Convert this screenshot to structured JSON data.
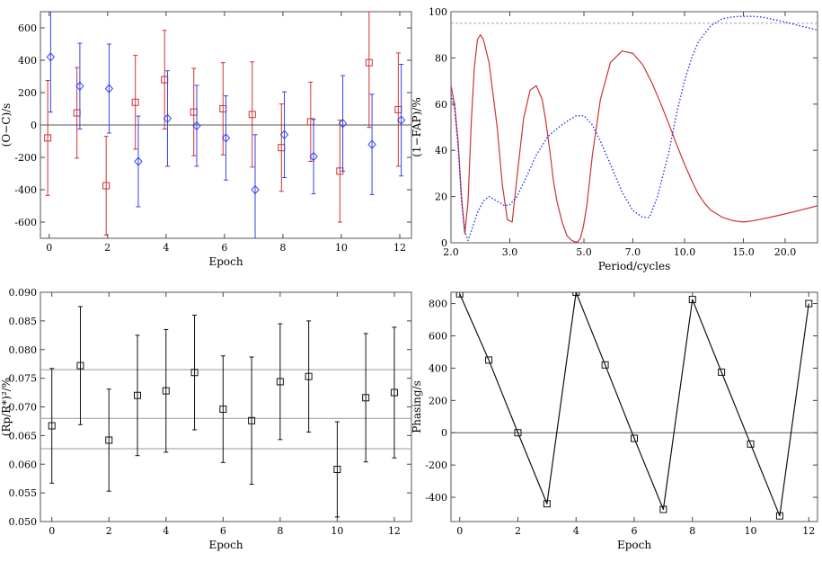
{
  "chart_data": [
    {
      "type": "scatter",
      "panel": "top-left",
      "xlabel": "Epoch",
      "ylabel": "(O−C)/s",
      "xlim": [
        -0.3,
        12.4
      ],
      "ylim": [
        -700,
        700
      ],
      "xticks": [
        0,
        2,
        4,
        6,
        8,
        10,
        12
      ],
      "yticks": [
        -600,
        -400,
        -200,
        0,
        200,
        400,
        600
      ],
      "hline": 0,
      "series": [
        {
          "name": "squares",
          "color": "#cc3333",
          "marker": "square",
          "x": [
            0,
            1,
            2,
            3,
            4,
            5,
            6,
            7,
            8,
            9,
            10,
            11,
            12
          ],
          "y": [
            -80,
            75,
            -375,
            140,
            280,
            80,
            100,
            65,
            -140,
            20,
            -285,
            385,
            95
          ],
          "err": [
            355,
            280,
            305,
            290,
            305,
            270,
            285,
            325,
            270,
            245,
            315,
            400,
            350
          ]
        },
        {
          "name": "diamonds",
          "color": "#3344ee",
          "marker": "diamond",
          "x": [
            0,
            1,
            2,
            3,
            4,
            5,
            6,
            7,
            8,
            9,
            10,
            11,
            12
          ],
          "y": [
            420,
            240,
            225,
            -225,
            40,
            -5,
            -80,
            -400,
            -60,
            -195,
            10,
            -120,
            30
          ],
          "err": [
            340,
            265,
            275,
            280,
            295,
            250,
            260,
            340,
            265,
            230,
            295,
            310,
            345
          ]
        }
      ]
    },
    {
      "type": "line",
      "panel": "top-right",
      "xlabel": "Period/cycles",
      "ylabel": "(1−FAP)/%",
      "xscale": "log",
      "xlim": [
        2.0,
        25.0
      ],
      "ylim": [
        0,
        100
      ],
      "xticks": [
        2.0,
        3.0,
        5.0,
        7.0,
        10.0,
        15.0,
        20.0
      ],
      "xtick_labels": [
        "2.0",
        "3.0",
        "5.0",
        "7.0",
        "10.0",
        "15.0",
        "20.0"
      ],
      "yticks": [
        0,
        20,
        40,
        60,
        80,
        100
      ],
      "threshold": 95,
      "series": [
        {
          "name": "red-solid",
          "color": "#cc3333",
          "style": "solid",
          "x": [
            2.0,
            2.05,
            2.1,
            2.15,
            2.2,
            2.25,
            2.3,
            2.35,
            2.4,
            2.45,
            2.5,
            2.6,
            2.75,
            2.85,
            2.95,
            3.05,
            3.15,
            3.3,
            3.45,
            3.6,
            3.75,
            3.85,
            3.95,
            4.05,
            4.15,
            4.3,
            4.45,
            4.6,
            4.72,
            4.8,
            4.88,
            4.98,
            5.1,
            5.3,
            5.6,
            6.0,
            6.5,
            7.0,
            7.5,
            8.0,
            8.5,
            9.0,
            9.5,
            10.0,
            10.5,
            11.0,
            11.5,
            12.0,
            13.0,
            14.0,
            15.0,
            16.0,
            18.0,
            20.0,
            22.0,
            25.0
          ],
          "y": [
            68,
            60,
            44,
            20,
            4,
            18,
            52,
            76,
            88,
            90,
            88,
            78,
            50,
            25,
            10,
            9,
            28,
            54,
            66,
            68,
            62,
            52,
            40,
            27,
            18,
            9,
            3,
            1,
            0.3,
            0.5,
            2,
            7,
            16,
            38,
            62,
            78,
            83,
            82,
            77,
            69,
            60,
            51,
            42,
            34,
            27,
            21,
            17,
            14,
            11,
            9.5,
            9,
            9.5,
            11,
            12.5,
            14,
            16
          ]
        },
        {
          "name": "blue-dotted",
          "color": "#2233ee",
          "style": "dotted",
          "x": [
            2.0,
            2.05,
            2.1,
            2.15,
            2.2,
            2.25,
            2.3,
            2.4,
            2.5,
            2.6,
            2.75,
            2.9,
            3.0,
            3.15,
            3.35,
            3.6,
            3.9,
            4.2,
            4.5,
            4.75,
            5.0,
            5.3,
            5.6,
            6.0,
            6.5,
            7.0,
            7.5,
            7.85,
            8.3,
            9.0,
            9.5,
            10.0,
            10.5,
            11.0,
            12.0,
            13.0,
            14.0,
            15.0,
            16.0,
            17.0,
            18.0,
            20.0,
            22.0,
            25.0
          ],
          "y": [
            64,
            58,
            42,
            18,
            5,
            1,
            5,
            13,
            18,
            20,
            18,
            16,
            16.5,
            20,
            28,
            38,
            46,
            50,
            53,
            55,
            55,
            51,
            44,
            34,
            22,
            14,
            11,
            11,
            20,
            40,
            57,
            70,
            80,
            87,
            94,
            97,
            97.8,
            98,
            98,
            97.7,
            97,
            95.5,
            94,
            92
          ]
        }
      ]
    },
    {
      "type": "scatter",
      "panel": "bottom-left",
      "xlabel": "Epoch",
      "ylabel": "(Rp/R*)²/%",
      "xlim": [
        -0.4,
        12.6
      ],
      "ylim": [
        0.05,
        0.09
      ],
      "xticks": [
        0,
        2,
        4,
        6,
        8,
        10,
        12
      ],
      "yticks": [
        0.05,
        0.055,
        0.06,
        0.065,
        0.07,
        0.075,
        0.08,
        0.085,
        0.09
      ],
      "ytick_labels": [
        "0.050",
        "0.055",
        "0.060",
        "0.065",
        "0.070",
        "0.075",
        "0.080",
        "0.085",
        "0.090"
      ],
      "hlines": [
        0.0627,
        0.068,
        0.0765
      ],
      "series": [
        {
          "name": "depth",
          "color": "#111111",
          "marker": "square",
          "x": [
            0,
            1,
            2,
            3,
            4,
            5,
            6,
            7,
            8,
            9,
            10,
            11,
            12
          ],
          "y": [
            0.0667,
            0.0772,
            0.0642,
            0.072,
            0.0728,
            0.076,
            0.0696,
            0.0676,
            0.0744,
            0.0753,
            0.0591,
            0.0716,
            0.0725
          ],
          "err": [
            0.01,
            0.0103,
            0.0089,
            0.0105,
            0.0107,
            0.01,
            0.0093,
            0.0111,
            0.0101,
            0.0097,
            0.0083,
            0.0112,
            0.0114
          ]
        }
      ]
    },
    {
      "type": "line",
      "panel": "bottom-right",
      "xlabel": "Epoch",
      "ylabel": "Phasing/s",
      "xlim": [
        -0.3,
        12.3
      ],
      "ylim": [
        -550,
        870
      ],
      "xticks": [
        0,
        2,
        4,
        6,
        8,
        10,
        12
      ],
      "yticks": [
        -400,
        -200,
        0,
        200,
        400,
        600,
        800
      ],
      "hline": 0,
      "series": [
        {
          "name": "phasing",
          "color": "#111111",
          "marker": "square",
          "x": [
            0,
            1,
            2,
            3,
            4,
            5,
            6,
            7,
            8,
            9,
            10,
            11,
            12
          ],
          "y": [
            860,
            450,
            0,
            -440,
            870,
            420,
            -35,
            -475,
            825,
            375,
            -70,
            -515,
            800
          ]
        }
      ]
    }
  ]
}
